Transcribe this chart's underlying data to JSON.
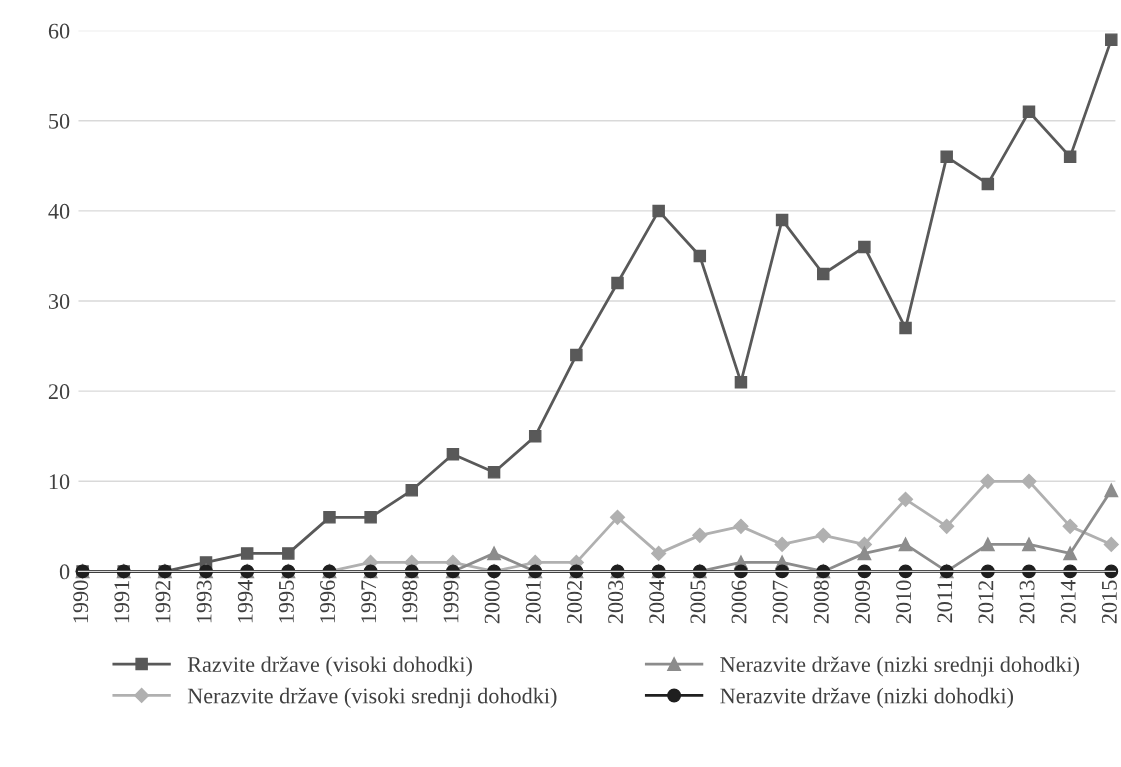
{
  "chart_data": {
    "type": "line",
    "categories": [
      "1990",
      "1991",
      "1992",
      "1993",
      "1994",
      "1995",
      "1996",
      "1997",
      "1998",
      "1999",
      "2000",
      "2001",
      "2002",
      "2003",
      "2004",
      "2005",
      "2006",
      "2007",
      "2008",
      "2009",
      "2010",
      "2011",
      "2012",
      "2013",
      "2014",
      "2015"
    ],
    "ylim": [
      0,
      60
    ],
    "yticks": [
      0,
      10,
      20,
      30,
      40,
      50,
      60
    ],
    "grid": "y",
    "legend": "bottom",
    "series": [
      {
        "name": "Razvite države (visoki dohodki)",
        "color": "#595959",
        "marker": "square",
        "values": [
          0,
          0,
          0,
          1,
          2,
          2,
          6,
          6,
          9,
          13,
          11,
          15,
          24,
          32,
          40,
          35,
          21,
          39,
          33,
          36,
          27,
          46,
          43,
          51,
          46,
          59
        ]
      },
      {
        "name": "Nerazvite države (visoki srednji dohodki)",
        "color": "#b0b0b0",
        "marker": "diamond",
        "values": [
          0,
          0,
          0,
          0,
          0,
          0,
          0,
          1,
          1,
          1,
          0,
          1,
          1,
          6,
          2,
          4,
          5,
          3,
          4,
          3,
          8,
          5,
          10,
          10,
          5,
          3
        ]
      },
      {
        "name": "Nerazvite države (nizki srednji dohodki)",
        "color": "#8c8c8c",
        "marker": "triangle",
        "values": [
          0,
          0,
          0,
          0,
          0,
          0,
          0,
          0,
          0,
          0,
          2,
          0,
          0,
          0,
          0,
          0,
          1,
          1,
          0,
          2,
          3,
          0,
          3,
          3,
          2,
          9
        ]
      },
      {
        "name": "Nerazvite države (nizki dohodki)",
        "color": "#1f1f1f",
        "marker": "circle",
        "values": [
          0,
          0,
          0,
          0,
          0,
          0,
          0,
          0,
          0,
          0,
          0,
          0,
          0,
          0,
          0,
          0,
          0,
          0,
          0,
          0,
          0,
          0,
          0,
          0,
          0,
          0
        ]
      }
    ]
  }
}
